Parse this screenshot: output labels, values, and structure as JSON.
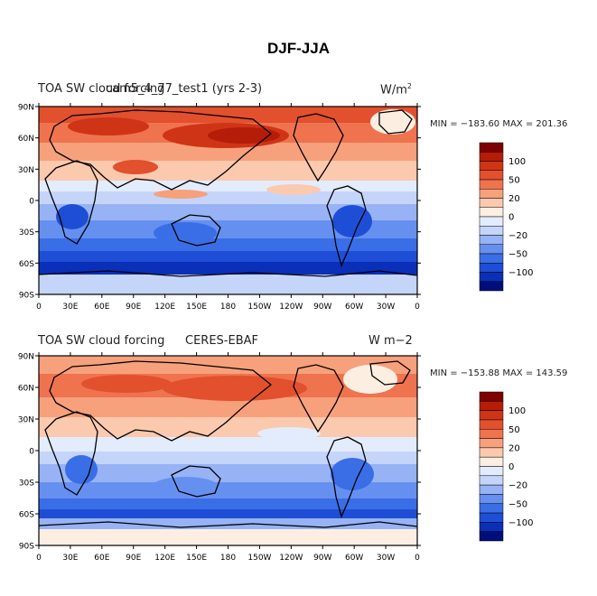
{
  "title": "DJF-JJA",
  "colors": [
    "#000e7a",
    "#0a2fb8",
    "#1f4ed6",
    "#3a6ee6",
    "#6690f0",
    "#97b3f5",
    "#c4d5f9",
    "#e3ecfc",
    "#fdeee2",
    "#fbc9ae",
    "#f7a07c",
    "#ef734e",
    "#e2502d",
    "#cf3417",
    "#b51d08",
    "#7f0000"
  ],
  "colorbar_labels": [
    "100",
    "50",
    "20",
    "0",
    "−20",
    "−50",
    "−100"
  ],
  "lat_ticks": [
    "90N",
    "60N",
    "30N",
    "0",
    "30S",
    "60S",
    "90S"
  ],
  "lon_ticks": [
    "0",
    "30E",
    "60E",
    "90E",
    "120E",
    "150E",
    "180",
    "150W",
    "120W",
    "90W",
    "60W",
    "30W",
    "0"
  ],
  "panels": [
    {
      "left_title": "TOA SW cloud forcing",
      "center_title": "cam5_4_77_test1 (yrs 2-3)",
      "units_base": "W/m",
      "units_sup": "2",
      "stats": "MIN = −183.60  MAX = 201.36",
      "min": -183.6,
      "max": 201.36
    },
    {
      "left_title": "TOA SW cloud forcing",
      "center_title": "CERES-EBAF",
      "units_base": "W m−2",
      "units_sup": "",
      "stats": "MIN = −153.88  MAX = 143.59",
      "min": -153.88,
      "max": 143.59
    }
  ]
}
